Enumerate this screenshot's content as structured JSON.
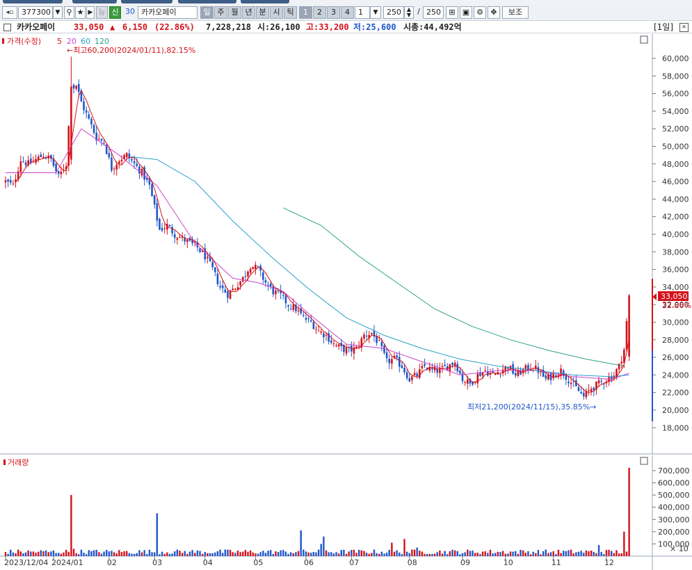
{
  "toolbar": {
    "code": "377300",
    "market_badge": "신",
    "period_value": "30",
    "stock_name": "카카오페이",
    "period_buttons": [
      "일",
      "주",
      "월",
      "년",
      "분",
      "시",
      "틱"
    ],
    "interval_buttons": [
      "1",
      "2",
      "3",
      "4"
    ],
    "interval_value": "1",
    "count_value": "250",
    "count_total": "250",
    "separator": "/",
    "assist_label": "보조"
  },
  "info": {
    "name": "카카오페이",
    "price": "33,050",
    "change_arrow": "▲",
    "change": "6,150",
    "change_pct": "(22.86%)",
    "volume": "7,228,218",
    "open": "시:26,100",
    "high": "고:33,200",
    "low": "저:25,600",
    "mcap": "시총:44,492억",
    "period_tag": "[1일]"
  },
  "price_panel": {
    "legend_price": "가격(수정)",
    "ma_labels": [
      "5",
      "20",
      "60",
      "120"
    ],
    "colors": {
      "up": "#d2121a",
      "down": "#1f56c8",
      "ma5": "#d2121a",
      "ma20": "#cc44cc",
      "ma60": "#2aa0c8",
      "ma120": "#2aa08a"
    },
    "high_annotation": "←최고60,200(2024/01/11),82.15%",
    "low_annotation": "최저21,200(2024/11/15),35.85%→",
    "current_price_tag": "33,050",
    "current_pct_tag": "22.86%"
  },
  "volume_panel": {
    "legend": "거래량",
    "multiplier": "× 10"
  },
  "chart_data": [
    {
      "type": "candlestick",
      "title": "카카오페이",
      "y_ticks": [
        18000,
        20000,
        22000,
        24000,
        26000,
        28000,
        30000,
        32000,
        34000,
        36000,
        38000,
        40000,
        42000,
        44000,
        46000,
        48000,
        50000,
        52000,
        54000,
        56000,
        58000,
        60000
      ],
      "y_tick_labels": [
        "18,000",
        "20,000",
        "22,000",
        "24,000",
        "26,000",
        "28,000",
        "30,000",
        "32,000",
        "34,000",
        "36,000",
        "38,000",
        "40,000",
        "42,000",
        "44,000",
        "46,000",
        "48,000",
        "50,000",
        "52,000",
        "54,000",
        "56,000",
        "58,000",
        "60,000"
      ],
      "ylim": [
        16000,
        62000
      ],
      "x_ticks": [
        {
          "label": "2023/12/04",
          "day": 0
        },
        {
          "label": "2024/01",
          "day": 19
        },
        {
          "label": "02",
          "day": 41
        },
        {
          "label": "03",
          "day": 59
        },
        {
          "label": "04",
          "day": 79
        },
        {
          "label": "05",
          "day": 99
        },
        {
          "label": "06",
          "day": 119
        },
        {
          "label": "07",
          "day": 137
        },
        {
          "label": "08",
          "day": 160
        },
        {
          "label": "09",
          "day": 181
        },
        {
          "label": "10",
          "day": 198
        },
        {
          "label": "11",
          "day": 217
        },
        {
          "label": "12",
          "day": 238
        }
      ],
      "close_path": [
        [
          0,
          46000
        ],
        [
          3,
          45500
        ],
        [
          6,
          48500
        ],
        [
          9,
          48000
        ],
        [
          12,
          48500
        ],
        [
          15,
          49000
        ],
        [
          18,
          48500
        ],
        [
          21,
          46500
        ],
        [
          24,
          48000
        ],
        [
          26,
          56500
        ],
        [
          28,
          57000
        ],
        [
          30,
          55000
        ],
        [
          33,
          53000
        ],
        [
          36,
          51000
        ],
        [
          39,
          50500
        ],
        [
          42,
          47500
        ],
        [
          45,
          48500
        ],
        [
          48,
          49000
        ],
        [
          51,
          48000
        ],
        [
          54,
          47000
        ],
        [
          57,
          45500
        ],
        [
          59,
          43000
        ],
        [
          61,
          40500
        ],
        [
          64,
          41000
        ],
        [
          67,
          40000
        ],
        [
          70,
          39500
        ],
        [
          73,
          39000
        ],
        [
          76,
          38500
        ],
        [
          79,
          37500
        ],
        [
          82,
          36000
        ],
        [
          85,
          34000
        ],
        [
          88,
          33200
        ],
        [
          91,
          34000
        ],
        [
          94,
          35000
        ],
        [
          97,
          36500
        ],
        [
          100,
          36000
        ],
        [
          103,
          34500
        ],
        [
          106,
          33500
        ],
        [
          109,
          33000
        ],
        [
          112,
          32000
        ],
        [
          115,
          31500
        ],
        [
          118,
          30500
        ],
        [
          121,
          30000
        ],
        [
          124,
          29000
        ],
        [
          127,
          28500
        ],
        [
          130,
          27500
        ],
        [
          133,
          27000
        ],
        [
          136,
          26800
        ],
        [
          139,
          27000
        ],
        [
          142,
          28500
        ],
        [
          145,
          28800
        ],
        [
          148,
          27500
        ],
        [
          151,
          25500
        ],
        [
          154,
          25800
        ],
        [
          157,
          25000
        ],
        [
          160,
          23500
        ],
        [
          163,
          24000
        ],
        [
          166,
          25000
        ],
        [
          169,
          24500
        ],
        [
          172,
          24500
        ],
        [
          175,
          25000
        ],
        [
          178,
          25500
        ],
        [
          181,
          23500
        ],
        [
          184,
          23000
        ],
        [
          187,
          24000
        ],
        [
          190,
          24500
        ],
        [
          193,
          24000
        ],
        [
          196,
          24500
        ],
        [
          199,
          25000
        ],
        [
          202,
          24000
        ],
        [
          205,
          24500
        ],
        [
          208,
          25000
        ],
        [
          211,
          24500
        ],
        [
          214,
          23500
        ],
        [
          217,
          24000
        ],
        [
          220,
          24500
        ],
        [
          223,
          23500
        ],
        [
          226,
          22500
        ],
        [
          229,
          21500
        ],
        [
          232,
          22500
        ],
        [
          235,
          23000
        ],
        [
          238,
          23500
        ],
        [
          241,
          24000
        ],
        [
          243,
          25000
        ],
        [
          245,
          26900
        ],
        [
          247,
          33050
        ]
      ],
      "ma_approx": {
        "ma20": [
          [
            0,
            47000
          ],
          [
            20,
            47000
          ],
          [
            30,
            52000
          ],
          [
            45,
            49000
          ],
          [
            60,
            45500
          ],
          [
            75,
            39000
          ],
          [
            90,
            35000
          ],
          [
            100,
            34500
          ],
          [
            110,
            33500
          ],
          [
            120,
            31000
          ],
          [
            135,
            27500
          ],
          [
            150,
            27000
          ],
          [
            165,
            25500
          ],
          [
            180,
            24000
          ],
          [
            195,
            24500
          ],
          [
            210,
            24500
          ],
          [
            225,
            23800
          ],
          [
            240,
            23500
          ],
          [
            247,
            24200
          ]
        ],
        "ma60": [
          [
            50,
            48800
          ],
          [
            60,
            48500
          ],
          [
            75,
            46000
          ],
          [
            90,
            41500
          ],
          [
            105,
            37500
          ],
          [
            120,
            33800
          ],
          [
            135,
            30500
          ],
          [
            150,
            28500
          ],
          [
            165,
            27000
          ],
          [
            180,
            25800
          ],
          [
            195,
            25000
          ],
          [
            210,
            24500
          ],
          [
            225,
            24000
          ],
          [
            240,
            23800
          ],
          [
            247,
            24000
          ]
        ],
        "ma120": [
          [
            110,
            43000
          ],
          [
            125,
            41000
          ],
          [
            140,
            37500
          ],
          [
            155,
            34500
          ],
          [
            170,
            31500
          ],
          [
            185,
            29500
          ],
          [
            200,
            28000
          ],
          [
            215,
            26800
          ],
          [
            230,
            25800
          ],
          [
            245,
            25000
          ]
        ]
      }
    },
    {
      "type": "bar",
      "title": "거래량",
      "y_ticks": [
        100000,
        200000,
        300000,
        400000,
        500000,
        600000,
        700000
      ],
      "y_tick_labels": [
        "100,000",
        "200,000",
        "300,000",
        "400,000",
        "500,000",
        "600,000",
        "700,000"
      ],
      "ylim": [
        0,
        760000
      ],
      "spikes": [
        {
          "day": 26,
          "value": 500000,
          "dir": "up"
        },
        {
          "day": 27,
          "value": 60000,
          "dir": "up"
        },
        {
          "day": 60,
          "value": 350000,
          "dir": "down"
        },
        {
          "day": 117,
          "value": 210000,
          "dir": "down"
        },
        {
          "day": 125,
          "value": 100000,
          "dir": "down"
        },
        {
          "day": 126,
          "value": 160000,
          "dir": "down"
        },
        {
          "day": 153,
          "value": 110000,
          "dir": "up"
        },
        {
          "day": 158,
          "value": 140000,
          "dir": "up"
        },
        {
          "day": 163,
          "value": 70000,
          "dir": "down"
        },
        {
          "day": 235,
          "value": 90000,
          "dir": "down"
        },
        {
          "day": 245,
          "value": 200000,
          "dir": "up"
        },
        {
          "day": 247,
          "value": 722821,
          "dir": "up"
        }
      ]
    }
  ]
}
